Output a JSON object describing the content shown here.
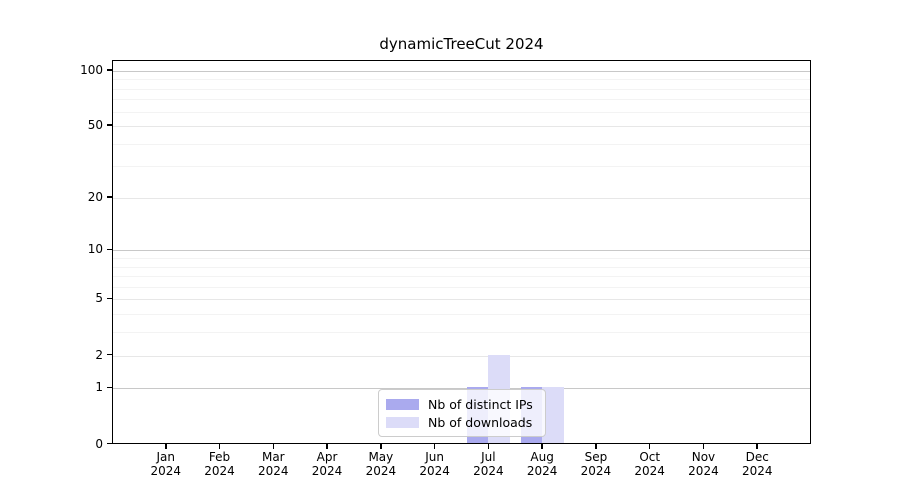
{
  "chart_data": {
    "type": "bar",
    "title": "dynamicTreeCut 2024",
    "xlabel": "",
    "ylabel": "",
    "categories": [
      "Jan 2024",
      "Feb 2024",
      "Mar 2024",
      "Apr 2024",
      "May 2024",
      "Jun 2024",
      "Jul 2024",
      "Aug 2024",
      "Sep 2024",
      "Oct 2024",
      "Nov 2024",
      "Dec 2024"
    ],
    "series": [
      {
        "name": "Nb of distinct IPs",
        "color": "#aaaaee",
        "values": [
          0,
          0,
          0,
          0,
          0,
          0,
          1,
          1,
          0,
          0,
          0,
          0
        ]
      },
      {
        "name": "Nb of downloads",
        "color": "#dcdcf8",
        "values": [
          0,
          0,
          0,
          0,
          0,
          0,
          2,
          1,
          0,
          0,
          0,
          0
        ]
      }
    ],
    "yscale": "log1p",
    "ylim": [
      0,
      113
    ],
    "yticks": [
      100,
      50,
      20,
      10,
      5,
      2,
      1,
      0
    ],
    "minor_gridlines": [
      3,
      4,
      6,
      7,
      8,
      9,
      30,
      40,
      60,
      70,
      80,
      90
    ],
    "grid": true,
    "legend_position": "lower-center-inside",
    "legend_background": "rgba(255,255,255,0.8)",
    "axis_color": "#000000",
    "major_grid_color": "#c8c8c8",
    "sub_grid_color": "#e7e7e7",
    "minor_grid_color": "#f3f3f3"
  }
}
